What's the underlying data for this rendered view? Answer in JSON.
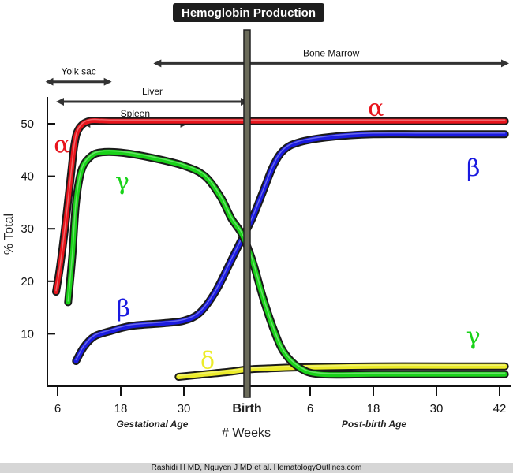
{
  "title": "Hemoglobin Production",
  "footer": "Rashidi H MD, Nguyen J MD et al. HematologyOutlines.com",
  "chart_data": {
    "type": "line",
    "ylabel": "% Total",
    "xlabel": "# Weeks",
    "x_tick_labels": [
      "6",
      "18",
      "30",
      "Birth",
      "6",
      "18",
      "30",
      "42"
    ],
    "x_period_labels": {
      "gestational": "Gestational Age",
      "postbirth": "Post-birth Age"
    },
    "y_ticks": [
      10,
      20,
      30,
      40,
      50
    ],
    "ylim": [
      0,
      55
    ],
    "x_positions": [
      0,
      12,
      24,
      36,
      48,
      60,
      72,
      84
    ],
    "xlim": [
      0,
      86
    ],
    "birth_x": 36,
    "grid": false,
    "sites": [
      {
        "name": "Yolk sac",
        "start": -2,
        "end": 10,
        "y": 58
      },
      {
        "name": "Liver",
        "start": 0,
        "end": 36,
        "y": 54.2
      },
      {
        "name": "Spleen",
        "start": 5,
        "end": 24.5,
        "y": 50
      },
      {
        "name": "Bone Marrow",
        "start": 18.5,
        "end": 85.5,
        "y": 61.5
      }
    ],
    "series": [
      {
        "name": "α",
        "color": "#e8141c",
        "points": [
          [
            -0.3,
            18
          ],
          [
            0.5,
            23
          ],
          [
            1.5,
            31
          ],
          [
            2.5,
            40
          ],
          [
            3.2,
            46
          ],
          [
            4,
            49
          ],
          [
            6,
            50.5
          ],
          [
            10,
            50.5
          ],
          [
            20,
            50.5
          ],
          [
            36,
            50.5
          ],
          [
            50,
            50.5
          ],
          [
            70,
            50.5
          ],
          [
            85,
            50.5
          ]
        ],
        "label_pos": [
          0.8,
          44.5
        ]
      },
      {
        "name": "γ",
        "color": "#19d219",
        "points": [
          [
            2,
            16
          ],
          [
            2.8,
            25
          ],
          [
            3.5,
            35
          ],
          [
            4.5,
            41
          ],
          [
            6,
            43.5
          ],
          [
            8,
            44.5
          ],
          [
            12,
            44.5
          ],
          [
            18,
            43.5
          ],
          [
            24,
            42
          ],
          [
            28,
            40
          ],
          [
            31,
            36
          ],
          [
            33,
            32
          ],
          [
            35,
            29
          ],
          [
            37,
            24
          ],
          [
            39,
            17
          ],
          [
            41,
            11
          ],
          [
            43,
            6.5
          ],
          [
            46,
            3.5
          ],
          [
            50,
            2.3
          ],
          [
            60,
            2.3
          ],
          [
            70,
            2.3
          ],
          [
            85,
            2.3
          ]
        ],
        "label_pos": [
          12.3,
          37.5
        ]
      },
      {
        "name": "β",
        "color": "#1a1ae0",
        "points": [
          [
            3.5,
            4.8
          ],
          [
            5,
            7.5
          ],
          [
            7,
            9.5
          ],
          [
            10,
            10.5
          ],
          [
            14,
            11.5
          ],
          [
            20,
            12
          ],
          [
            24,
            12.5
          ],
          [
            27,
            14
          ],
          [
            30,
            18
          ],
          [
            33,
            24
          ],
          [
            35,
            28
          ],
          [
            37,
            32
          ],
          [
            39,
            37
          ],
          [
            41,
            42
          ],
          [
            43,
            45
          ],
          [
            46,
            46.5
          ],
          [
            52,
            47.5
          ],
          [
            60,
            48
          ],
          [
            70,
            48
          ],
          [
            85,
            48
          ]
        ],
        "label_pos": [
          12.5,
          13.3
        ]
      },
      {
        "name": "δ",
        "color": "#ecec2a",
        "points": [
          [
            23,
            1.8
          ],
          [
            28,
            2.3
          ],
          [
            33,
            2.8
          ],
          [
            36,
            3.2
          ],
          [
            40,
            3.4
          ],
          [
            46,
            3.6
          ],
          [
            60,
            3.8
          ],
          [
            75,
            3.8
          ],
          [
            85,
            3.8
          ]
        ],
        "label_pos": [
          28.5,
          3.4
        ]
      }
    ],
    "right_labels": [
      {
        "name": "α",
        "color": "#e8141c",
        "pos": [
          60.5,
          51.5
        ]
      },
      {
        "name": "β",
        "color": "#1a1ae0",
        "pos": [
          79,
          40
        ]
      },
      {
        "name": "γ",
        "color": "#19d219",
        "pos": [
          79,
          8
        ]
      }
    ]
  }
}
